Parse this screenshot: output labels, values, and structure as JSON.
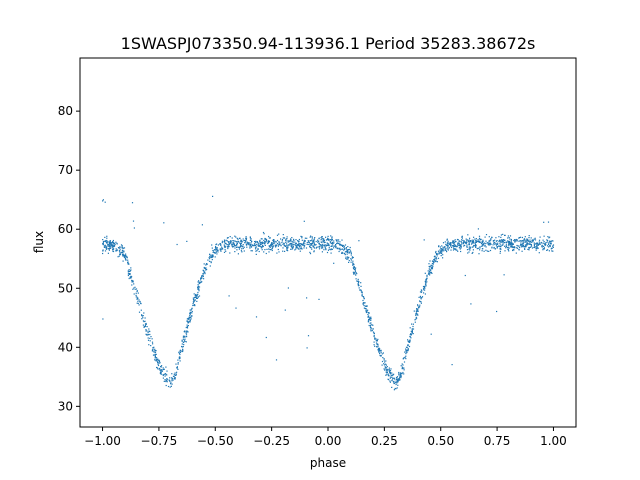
{
  "chart_data": {
    "type": "scatter",
    "title": "1SWASPJ073350.94-113936.1 Period 35283.38672s",
    "xlabel": "phase",
    "ylabel": "flux",
    "xlim": [
      -1.1,
      1.1
    ],
    "ylim": [
      26.5,
      89.0
    ],
    "xticks": [
      -1.0,
      -0.75,
      -0.5,
      -0.25,
      0.0,
      0.25,
      0.5,
      0.75,
      1.0
    ],
    "xtick_labels": [
      "−1.00",
      "−0.75",
      "−0.50",
      "−0.25",
      "0.00",
      "0.25",
      "0.50",
      "0.75",
      "1.00"
    ],
    "yticks": [
      30,
      40,
      50,
      60,
      70,
      80
    ],
    "ytick_labels": [
      "30",
      "40",
      "50",
      "60",
      "70",
      "80"
    ],
    "grid": false,
    "legend": "none",
    "point_color": "#1f77b4",
    "series": [
      {
        "x": [
          -1.0,
          -0.95,
          -0.9,
          -0.85,
          -0.8,
          -0.75,
          -0.72,
          -0.7,
          -0.68,
          -0.65,
          -0.6,
          -0.55,
          -0.5,
          -0.45,
          -0.4,
          -0.3,
          -0.2,
          -0.1,
          0.0,
          0.05,
          0.1,
          0.15,
          0.2,
          0.25,
          0.28,
          0.3,
          0.32,
          0.35,
          0.4,
          0.45,
          0.5,
          0.55,
          0.6,
          0.7,
          0.8,
          0.9,
          1.0
        ],
        "y": [
          57.5,
          57.4,
          55.5,
          49.0,
          42.5,
          37.0,
          35.0,
          34.0,
          35.0,
          39.5,
          47.0,
          53.0,
          56.5,
          57.4,
          57.5,
          57.5,
          57.5,
          57.5,
          57.5,
          57.4,
          55.5,
          49.0,
          42.5,
          37.0,
          35.0,
          34.0,
          35.0,
          39.5,
          47.0,
          53.0,
          56.5,
          57.4,
          57.5,
          57.5,
          57.5,
          57.5,
          57.5
        ]
      }
    ]
  }
}
